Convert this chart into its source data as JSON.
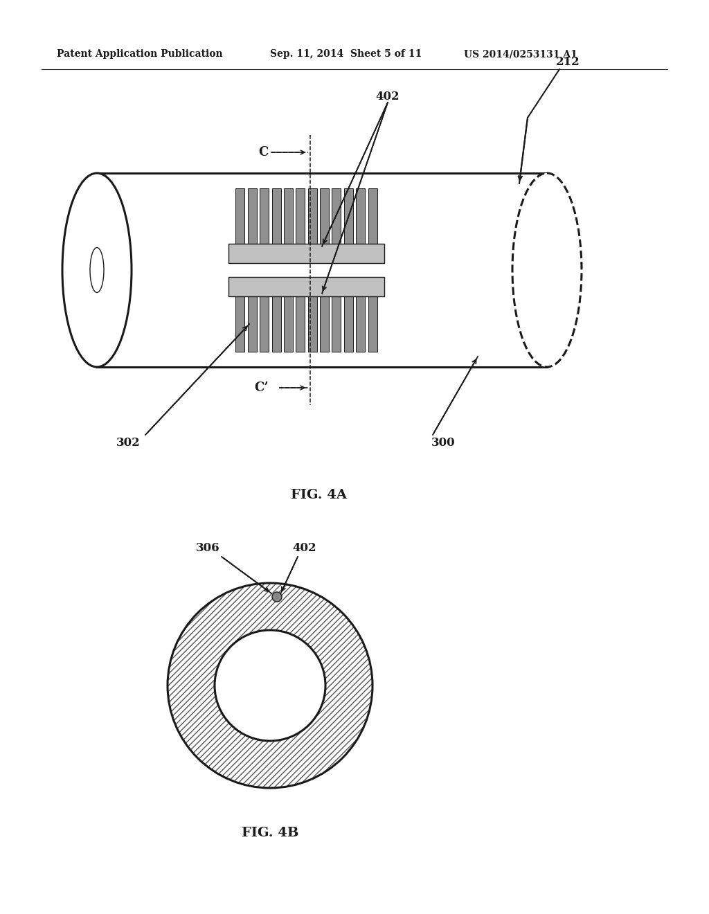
{
  "bg_color": "#ffffff",
  "line_color": "#1a1a1a",
  "header_text": "Patent Application Publication",
  "header_date": "Sep. 11, 2014  Sheet 5 of 11",
  "header_patent": "US 2014/0253131 A1",
  "fig4a_label": "FIG. 4A",
  "fig4b_label": "FIG. 4B",
  "label_212": "212",
  "label_402": "402",
  "label_302": "302",
  "label_300": "300",
  "label_306": "306",
  "label_C": "C",
  "label_Cprime": "C’"
}
